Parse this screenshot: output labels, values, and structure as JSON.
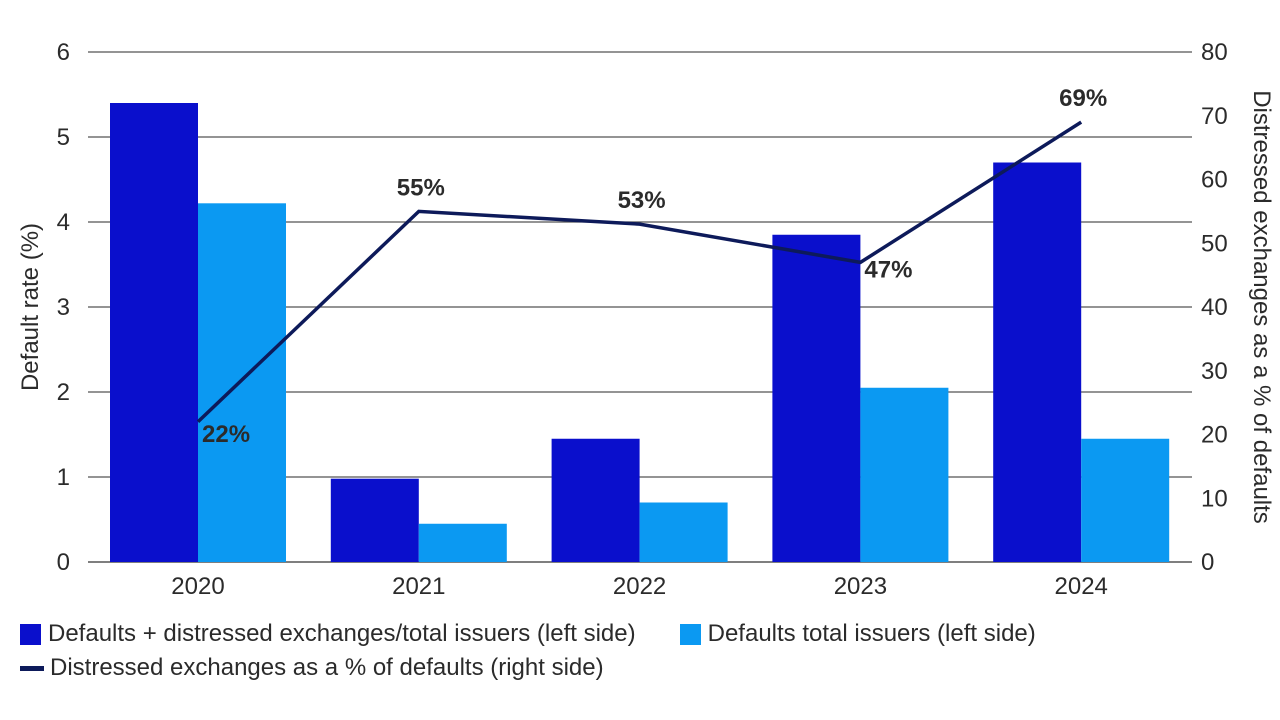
{
  "colors": {
    "series1": "#0a0fcc",
    "series2": "#0b99f2",
    "line": "#0d1a5a",
    "grid": "#555555"
  },
  "chart_data": {
    "type": "bar",
    "categories": [
      "2020",
      "2021",
      "2022",
      "2023",
      "2024"
    ],
    "series": [
      {
        "name": "Defaults + distressed exchanges/total issuers (left side)",
        "type": "bar",
        "axis": "left",
        "values": [
          5.4,
          0.98,
          1.45,
          3.85,
          4.7
        ]
      },
      {
        "name": "Defaults total issuers (left side)",
        "type": "bar",
        "axis": "left",
        "values": [
          4.22,
          0.45,
          0.7,
          2.05,
          1.45
        ]
      },
      {
        "name": "Distressed exchanges as a % of defaults (right side)",
        "type": "line",
        "axis": "right",
        "values": [
          22,
          55,
          53,
          47,
          69
        ],
        "labels": [
          "22%",
          "55%",
          "53%",
          "47%",
          "69%"
        ]
      }
    ],
    "y_left": {
      "label": "Default rate (%)",
      "min": 0,
      "max": 6,
      "ticks": [
        "0",
        "1",
        "2",
        "3",
        "4",
        "5",
        "6"
      ]
    },
    "y_right": {
      "label": "Distressed exchanges as a % of defaults",
      "min": 0,
      "max": 80,
      "ticks": [
        "0",
        "10",
        "20",
        "30",
        "40",
        "50",
        "60",
        "70",
        "80"
      ]
    },
    "grid": true,
    "legend": "bottom"
  },
  "legend": {
    "item1": "Defaults + distressed exchanges/total issuers (left side)",
    "item2": "Defaults total issuers (left side)",
    "item3": "Distressed exchanges as a % of defaults (right side)"
  }
}
